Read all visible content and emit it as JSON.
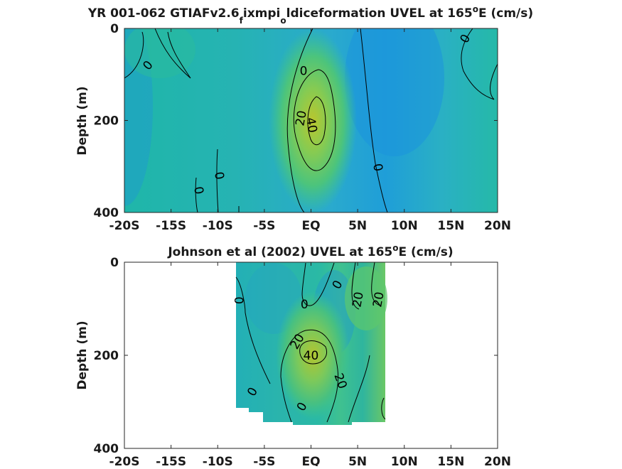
{
  "chart_data": [
    {
      "type": "heatmap",
      "title_main": "YR 001-062 GTIAFv2.6",
      "title_sub1": "f",
      "title_mid": "ixmpi",
      "title_sub2": "o",
      "title_tail": "ldiceformation UVEL at 165",
      "title_deg": "o",
      "title_end": "E (cm/s)",
      "ylabel": "Depth (m)",
      "xlim": [
        -20,
        20
      ],
      "ylim": [
        0,
        400
      ],
      "y_reversed": true,
      "x_ticks": [
        -20,
        -15,
        -10,
        -5,
        0,
        5,
        10,
        15,
        20
      ],
      "x_tick_labels": [
        "-20S",
        "-15S",
        "-10S",
        "-5S",
        "EQ",
        "5N",
        "10N",
        "15N",
        "20N"
      ],
      "y_ticks": [
        0,
        200,
        400
      ],
      "y_tick_labels": [
        "0",
        "200",
        "400"
      ],
      "data_extent": {
        "x": [
          -20,
          20
        ],
        "depth": [
          0,
          395
        ]
      },
      "contour_levels": [
        0,
        20,
        40
      ],
      "colormap": [
        "#1e8fe0",
        "#22a8c8",
        "#2ab8a8",
        "#3ec48a",
        "#7ccd5a",
        "#b9c62e"
      ],
      "core": {
        "lat": 0.6,
        "depth": 190,
        "max_speed": 45
      },
      "contour_labels": [
        {
          "text": "0",
          "lat": -17.5,
          "depth": 80,
          "rotate": -50
        },
        {
          "text": "0",
          "lat": -0.8,
          "depth": 92,
          "rotate": 0
        },
        {
          "text": "20",
          "lat": -1.1,
          "depth": 195,
          "rotate": -80
        },
        {
          "text": "40",
          "lat": 0.1,
          "depth": 210,
          "rotate": 80
        },
        {
          "text": "0",
          "lat": 7.2,
          "depth": 302,
          "rotate": 80
        },
        {
          "text": "0",
          "lat": -9.8,
          "depth": 320,
          "rotate": 80
        },
        {
          "text": "0",
          "lat": -12.0,
          "depth": 352,
          "rotate": 80
        },
        {
          "text": "0",
          "lat": 16.5,
          "depth": 22,
          "rotate": -60
        }
      ]
    },
    {
      "type": "heatmap",
      "title_tail": "Johnson et al (2002) UVEL at 165",
      "title_deg": "o",
      "title_end": "E (cm/s)",
      "ylabel": "Depth (m)",
      "xlim": [
        -20,
        20
      ],
      "ylim": [
        0,
        400
      ],
      "y_reversed": true,
      "x_ticks": [
        -20,
        -15,
        -10,
        -5,
        0,
        5,
        10,
        15,
        20
      ],
      "x_tick_labels": [
        "-20S",
        "-15S",
        "-10S",
        "-5S",
        "EQ",
        "5N",
        "10N",
        "15N",
        "20N"
      ],
      "y_ticks": [
        0,
        200,
        400
      ],
      "y_tick_labels": [
        "0",
        "200",
        "400"
      ],
      "data_extent": {
        "x": [
          -8,
          8
        ],
        "depth": [
          0,
          365
        ]
      },
      "contour_levels": [
        0,
        20,
        40
      ],
      "colormap": [
        "#1e8fe0",
        "#22a8c8",
        "#2ab8a8",
        "#3ec48a",
        "#7ccd5a",
        "#b9c62e"
      ],
      "core": {
        "lat": 0.5,
        "depth": 190,
        "max_speed": 46
      },
      "contour_labels": [
        {
          "text": "0",
          "lat": -7.7,
          "depth": 82,
          "rotate": -90
        },
        {
          "text": "0",
          "lat": -0.7,
          "depth": 90,
          "rotate": 0
        },
        {
          "text": "0",
          "lat": 2.8,
          "depth": 48,
          "rotate": -60
        },
        {
          "text": "20",
          "lat": 5.0,
          "depth": 80,
          "rotate": -80
        },
        {
          "text": "20",
          "lat": 7.2,
          "depth": 80,
          "rotate": -80
        },
        {
          "text": "20",
          "lat": -1.5,
          "depth": 170,
          "rotate": -60
        },
        {
          "text": "40",
          "lat": 0.0,
          "depth": 200,
          "rotate": 0
        },
        {
          "text": "20",
          "lat": 3.2,
          "depth": 255,
          "rotate": 70
        },
        {
          "text": "0",
          "lat": -6.3,
          "depth": 278,
          "rotate": -60
        },
        {
          "text": "0",
          "lat": -1.0,
          "depth": 310,
          "rotate": -60
        }
      ]
    }
  ]
}
